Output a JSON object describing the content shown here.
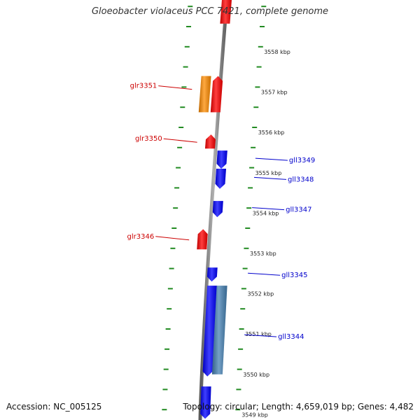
{
  "title": "Gloeobacter violaceus PCC 7421, complete genome",
  "footer": {
    "accession": "Accession: NC_005125",
    "summary": "Topology: circular; Length: 4,659,019 bp; Genes: 4,482"
  },
  "colors": {
    "forward_gene": "#ff0000",
    "reverse_gene": "#0000ff",
    "highlight_forward": "#ff8c00",
    "highlight_reverse": "#4682b4",
    "backbone": "#808080",
    "tick": "#228b22",
    "forward_label": "#cc0000",
    "reverse_label": "#0000cc"
  },
  "scale_labels": [
    {
      "text": "3558 kbp",
      "kbp": 3558
    },
    {
      "text": "3557 kbp",
      "kbp": 3557
    },
    {
      "text": "3556 kbp",
      "kbp": 3556
    },
    {
      "text": "3555 kbp",
      "kbp": 3555
    },
    {
      "text": "3554 kbp",
      "kbp": 3554
    },
    {
      "text": "3553 kbp",
      "kbp": 3553
    },
    {
      "text": "3552 kbp",
      "kbp": 3552
    },
    {
      "text": "3551 kbp",
      "kbp": 3551
    },
    {
      "text": "3550 kbp",
      "kbp": 3550
    },
    {
      "text": "3549 kbp",
      "kbp": 3549
    }
  ],
  "genes": [
    {
      "id": "gene-top",
      "label": "",
      "strand": "forward",
      "start_kbp": 3558.7,
      "end_kbp": 3559.5,
      "color": "#ff0000"
    },
    {
      "id": "glr3351-orange",
      "label": "glr3351",
      "strand": "forward",
      "start_kbp": 3556.5,
      "end_kbp": 3557.4,
      "color": "#ff8c00"
    },
    {
      "id": "glr3351-red",
      "label": "",
      "strand": "forward",
      "start_kbp": 3556.5,
      "end_kbp": 3557.4,
      "color": "#ff0000"
    },
    {
      "id": "glr3350",
      "label": "glr3350",
      "strand": "forward",
      "start_kbp": 3555.6,
      "end_kbp": 3555.95,
      "color": "#ff0000"
    },
    {
      "id": "gll3349",
      "label": "gll3349",
      "strand": "reverse",
      "start_kbp": 3555.1,
      "end_kbp": 3555.55,
      "color": "#0000ff"
    },
    {
      "id": "gll3348",
      "label": "gll3348",
      "strand": "reverse",
      "start_kbp": 3554.6,
      "end_kbp": 3555.1,
      "color": "#0000ff"
    },
    {
      "id": "gll3347",
      "label": "gll3347",
      "strand": "reverse",
      "start_kbp": 3553.9,
      "end_kbp": 3554.3,
      "color": "#0000ff"
    },
    {
      "id": "glr3346",
      "label": "glr3346",
      "strand": "forward",
      "start_kbp": 3553.1,
      "end_kbp": 3553.6,
      "color": "#ff0000"
    },
    {
      "id": "gll3345",
      "label": "gll3345",
      "strand": "reverse",
      "start_kbp": 3552.3,
      "end_kbp": 3552.65,
      "color": "#0000ff"
    },
    {
      "id": "gll3344",
      "label": "gll3344",
      "strand": "reverse",
      "start_kbp": 3549.95,
      "end_kbp": 3552.2,
      "color": "#0000ff"
    },
    {
      "id": "gll3344-highlight",
      "label": "",
      "strand": "reverse",
      "start_kbp": 3550.0,
      "end_kbp": 3552.2,
      "color": "#4682b4"
    },
    {
      "id": "gene-bottom",
      "label": "",
      "strand": "reverse",
      "start_kbp": 3548.9,
      "end_kbp": 3549.7,
      "color": "#0000ff"
    }
  ]
}
